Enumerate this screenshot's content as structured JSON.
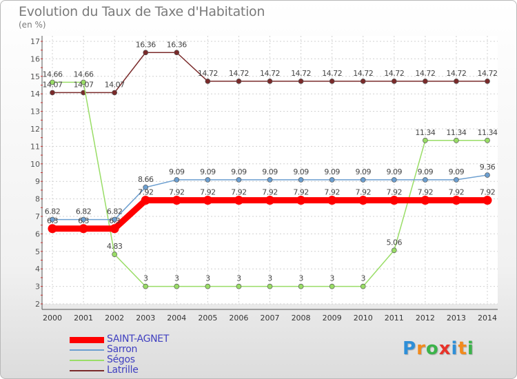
{
  "title": "Evolution du Taux de Taxe d'Habitation",
  "subtitle": "(en %)",
  "logo": {
    "text": "Proxiti",
    "colors": [
      "#2e8fd8",
      "#f28a1c",
      "#3bb34a",
      "#e8332a",
      "#2e8fd8",
      "#f28a1c",
      "#3bb34a"
    ]
  },
  "chart_data": {
    "type": "line",
    "title": "Evolution du Taux de Taxe d'Habitation",
    "ylabel": "(en %)",
    "xlabel": "",
    "x": [
      2000,
      2001,
      2002,
      2003,
      2004,
      2005,
      2006,
      2007,
      2008,
      2009,
      2010,
      2011,
      2012,
      2013,
      2014
    ],
    "ylim": [
      2,
      17
    ],
    "yticks": [
      2,
      3,
      4,
      5,
      6,
      7,
      8,
      9,
      10,
      11,
      12,
      13,
      14,
      15,
      16,
      17
    ],
    "grid": true,
    "legend_position": "bottom-left",
    "series": [
      {
        "name": "SAINT-AGNET",
        "color": "#ff0000",
        "values": [
          6.3,
          6.3,
          6.3,
          7.92,
          7.92,
          7.92,
          7.92,
          7.92,
          7.92,
          7.92,
          7.92,
          7.92,
          7.92,
          7.92,
          7.92
        ],
        "labels": [
          "6.3",
          "6.3",
          "6.3",
          "7.92",
          "7.92",
          "7.92",
          "7.92",
          "7.92",
          "7.92",
          "7.92",
          "7.92",
          "7.92",
          "7.92",
          "7.92",
          "7.92"
        ]
      },
      {
        "name": "Sarron",
        "color": "#6c9fd0",
        "values": [
          6.82,
          6.82,
          6.82,
          8.66,
          9.09,
          9.09,
          9.09,
          9.09,
          9.09,
          9.09,
          9.09,
          9.09,
          9.09,
          9.09,
          9.36
        ],
        "labels": [
          "6.82",
          "6.82",
          "6.82",
          "8.66",
          "9.09",
          "9.09",
          "9.09",
          "9.09",
          "9.09",
          "9.09",
          "9.09",
          "9.09",
          "9.09",
          "9.09",
          "9.36"
        ]
      },
      {
        "name": "Ségos",
        "color": "#99dd66",
        "values": [
          14.66,
          14.66,
          4.83,
          3,
          3,
          3,
          3,
          3,
          3,
          3,
          3,
          5.06,
          11.34,
          11.34,
          11.34
        ],
        "labels": [
          "14.66",
          "14.66",
          "4.83",
          "3",
          "3",
          "3",
          "3",
          "3",
          "3",
          "3",
          "3",
          "5.06",
          "11.34",
          "11.34",
          "11.34"
        ]
      },
      {
        "name": "Latrille",
        "color": "#7a2a2a",
        "values": [
          14.07,
          14.07,
          14.07,
          16.36,
          16.36,
          14.72,
          14.72,
          14.72,
          14.72,
          14.72,
          14.72,
          14.72,
          14.72,
          14.72,
          14.72
        ],
        "labels": [
          "14.07",
          "14.07",
          "14.07",
          "16.36",
          "16.36",
          "14.72",
          "14.72",
          "14.72",
          "14.72",
          "14.72",
          "14.72",
          "14.72",
          "14.72",
          "14.72",
          "14.72"
        ]
      }
    ]
  }
}
